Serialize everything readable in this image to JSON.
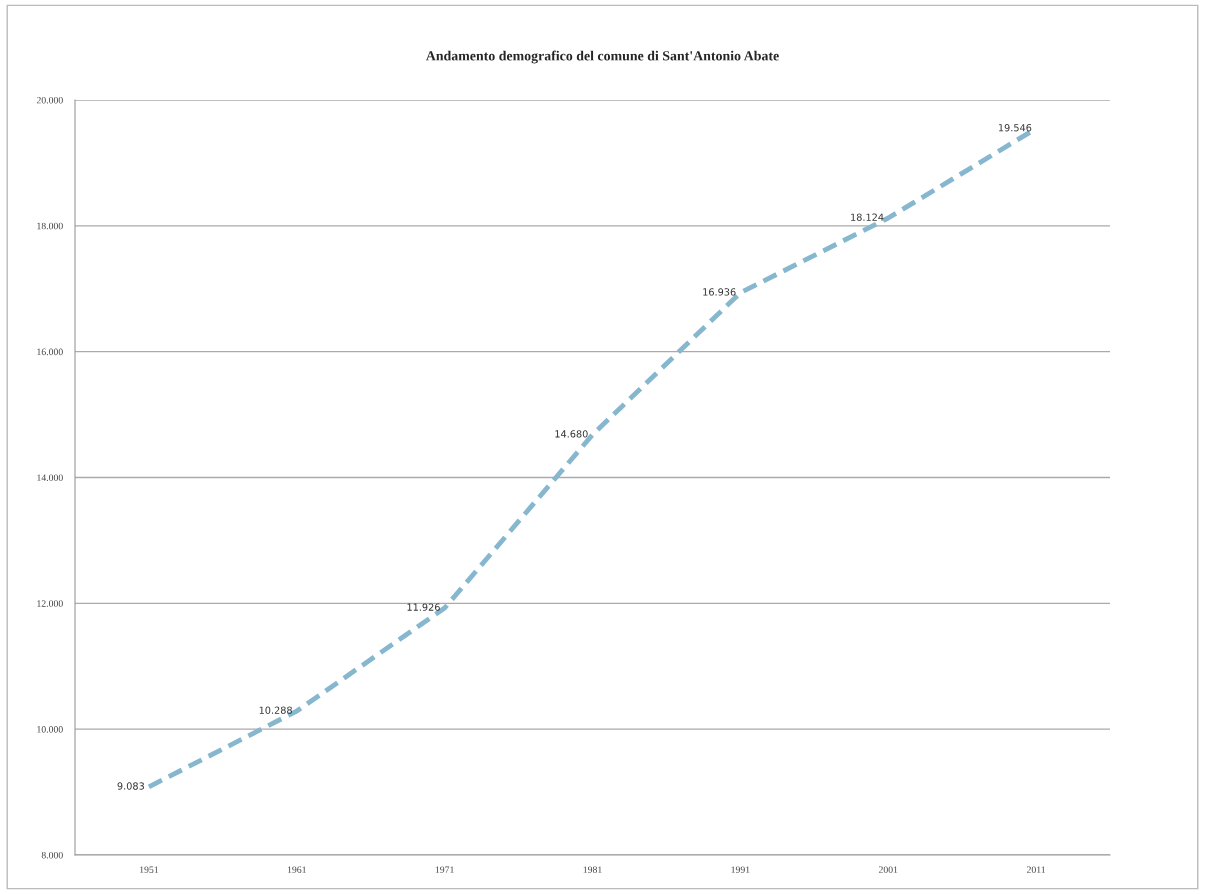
{
  "chart_data": {
    "type": "line",
    "title": "Andamento demografico del comune di Sant'Antonio Abate",
    "categories": [
      "1951",
      "1961",
      "1971",
      "1981",
      "1991",
      "2001",
      "2011"
    ],
    "series": [
      {
        "color": "#86b7cf",
        "values": [
          9083,
          10288,
          11926,
          14680,
          16936,
          18124,
          19546
        ],
        "value_labels": [
          "9.083",
          "10.288",
          "11.926",
          "14.680",
          "16.936",
          "18.124",
          "19.546"
        ]
      }
    ],
    "ylim": [
      8000,
      20000
    ],
    "yticks": [
      {
        "value": 8000,
        "label": "8.000"
      },
      {
        "value": 10000,
        "label": "10.000"
      },
      {
        "value": 12000,
        "label": "12.000"
      },
      {
        "value": 14000,
        "label": "14.000"
      },
      {
        "value": 16000,
        "label": "16.000"
      },
      {
        "value": 18000,
        "label": "18.000"
      },
      {
        "value": 20000,
        "label": "20.000"
      }
    ],
    "grid": "y",
    "marker": "none",
    "line_style": "dashed"
  }
}
